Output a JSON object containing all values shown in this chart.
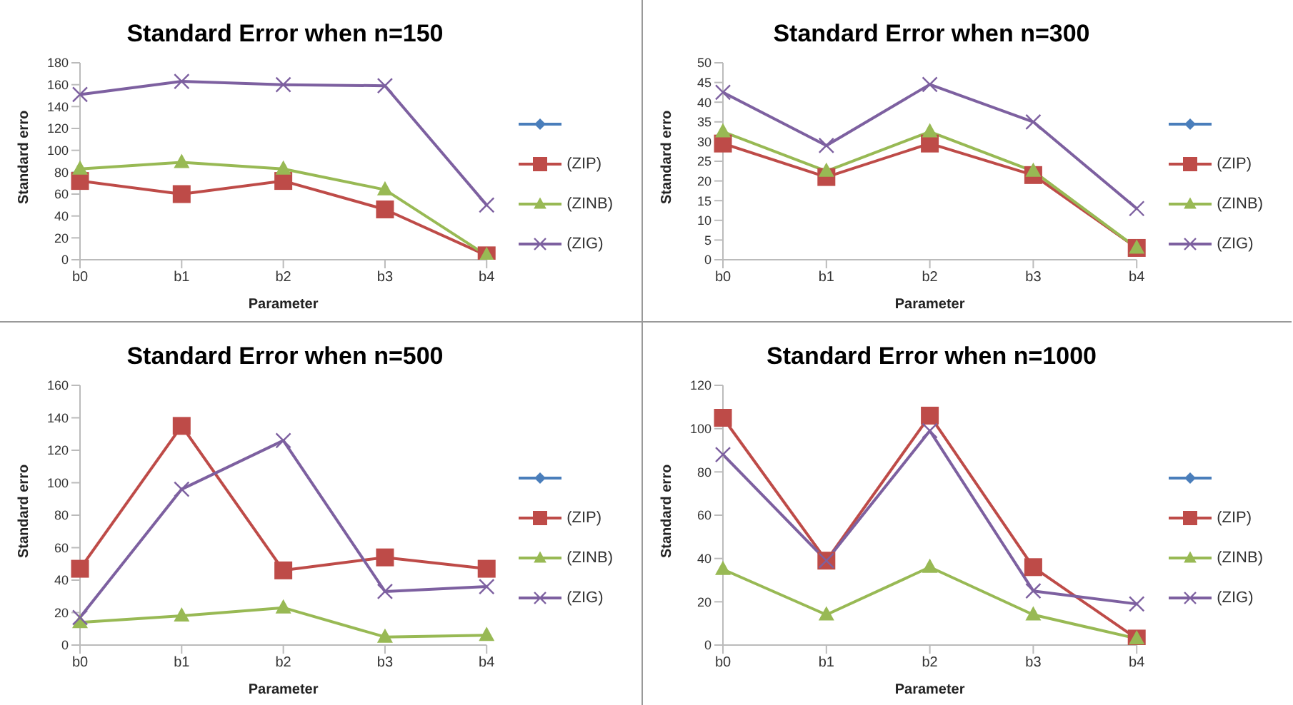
{
  "chart_data": [
    {
      "type": "line",
      "title": "Standard Error when n=150",
      "xlabel": "Parameter",
      "ylabel": "Standard erro",
      "categories": [
        "b0",
        "b1",
        "b2",
        "b3",
        "b4"
      ],
      "ylim": [
        0,
        180
      ],
      "yticks": [
        0,
        20,
        40,
        60,
        80,
        100,
        120,
        140,
        160,
        180
      ],
      "legend": "right",
      "series": [
        {
          "color": "#4a7ebb",
          "marker": "diamond",
          "values": [
            null,
            null,
            null,
            null,
            null
          ]
        },
        {
          "name": "(ZIP)",
          "color": "#be4b48",
          "marker": "square",
          "values": [
            72,
            60,
            72,
            46,
            4
          ]
        },
        {
          "name": "(ZINB)",
          "color": "#98b954",
          "marker": "triangle",
          "values": [
            83,
            89,
            83,
            64,
            4
          ]
        },
        {
          "name": "(ZIG)",
          "color": "#7d60a0",
          "marker": "cross",
          "values": [
            151,
            163,
            160,
            159,
            50
          ]
        }
      ]
    },
    {
      "type": "line",
      "title": "Standard Error when n=300",
      "xlabel": "Parameter",
      "ylabel": "Standard erro",
      "categories": [
        "b0",
        "b1",
        "b2",
        "b3",
        "b4"
      ],
      "ylim": [
        0,
        50
      ],
      "yticks": [
        0,
        5,
        10,
        15,
        20,
        25,
        30,
        35,
        40,
        45,
        50
      ],
      "legend": "right",
      "series": [
        {
          "color": "#4a7ebb",
          "marker": "diamond",
          "values": [
            null,
            null,
            null,
            null,
            null
          ]
        },
        {
          "name": "(ZIP)",
          "color": "#be4b48",
          "marker": "square",
          "values": [
            29.5,
            21,
            29.5,
            21.5,
            3
          ]
        },
        {
          "name": "(ZINB)",
          "color": "#98b954",
          "marker": "triangle",
          "values": [
            32.5,
            22.5,
            32.5,
            22.5,
            3
          ]
        },
        {
          "name": "(ZIG)",
          "color": "#7d60a0",
          "marker": "cross",
          "values": [
            42.5,
            29,
            44.5,
            35,
            13
          ]
        }
      ]
    },
    {
      "type": "line",
      "title": "Standard Error when n=500",
      "xlabel": "Parameter",
      "ylabel": "Standard erro",
      "categories": [
        "b0",
        "b1",
        "b2",
        "b3",
        "b4"
      ],
      "ylim": [
        0,
        160
      ],
      "yticks": [
        0,
        20,
        40,
        60,
        80,
        100,
        120,
        140,
        160
      ],
      "legend": "right",
      "series": [
        {
          "color": "#4a7ebb",
          "marker": "diamond",
          "values": [
            null,
            null,
            null,
            null,
            null
          ]
        },
        {
          "name": "(ZIP)",
          "color": "#be4b48",
          "marker": "square",
          "values": [
            47,
            135,
            46,
            54,
            47
          ]
        },
        {
          "name": "(ZINB)",
          "color": "#98b954",
          "marker": "triangle",
          "values": [
            14,
            18,
            23,
            5,
            6
          ]
        },
        {
          "name": "(ZIG)",
          "color": "#7d60a0",
          "marker": "cross",
          "values": [
            17,
            96,
            126,
            33,
            36
          ]
        }
      ]
    },
    {
      "type": "line",
      "title": "Standard Error when n=1000",
      "xlabel": "Parameter",
      "ylabel": "Standard erro",
      "categories": [
        "b0",
        "b1",
        "b2",
        "b3",
        "b4"
      ],
      "ylim": [
        0,
        120
      ],
      "yticks": [
        0,
        20,
        40,
        60,
        80,
        100,
        120
      ],
      "legend": "right",
      "series": [
        {
          "color": "#4a7ebb",
          "marker": "diamond",
          "values": [
            null,
            null,
            null,
            null,
            null
          ]
        },
        {
          "name": "(ZIP)",
          "color": "#be4b48",
          "marker": "square",
          "values": [
            105,
            39,
            106,
            36,
            3
          ]
        },
        {
          "name": "(ZINB)",
          "color": "#98b954",
          "marker": "triangle",
          "values": [
            35,
            14,
            36,
            14,
            3
          ]
        },
        {
          "name": "(ZIG)",
          "color": "#7d60a0",
          "marker": "cross",
          "values": [
            88,
            39,
            99,
            25,
            19
          ]
        }
      ]
    }
  ]
}
